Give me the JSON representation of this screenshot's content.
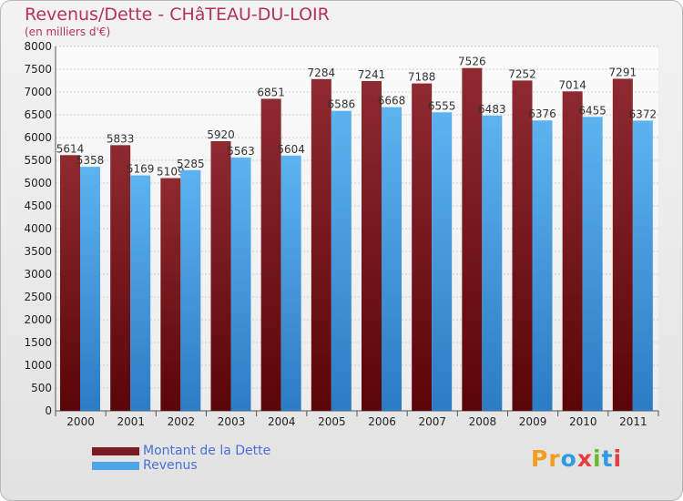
{
  "chart_data": {
    "type": "bar",
    "title": "Revenus/Dette - CHâTEAU-DU-LOIR",
    "subtitle": "(en milliers d'€)",
    "categories": [
      "2000",
      "2001",
      "2002",
      "2003",
      "2004",
      "2005",
      "2006",
      "2007",
      "2008",
      "2009",
      "2010",
      "2011"
    ],
    "series": [
      {
        "name": "Montant de la Dette",
        "color": "#7a1a22",
        "values": [
          5614,
          5833,
          5109,
          5920,
          6851,
          7284,
          7241,
          7188,
          7526,
          7252,
          7014,
          7291
        ]
      },
      {
        "name": "Revenus",
        "color": "#4fa6e6",
        "values": [
          5358,
          5169,
          5285,
          5563,
          5604,
          6586,
          6668,
          6555,
          6483,
          6376,
          6455,
          6372
        ]
      }
    ],
    "ylim": [
      0,
      8000
    ],
    "yticks": [
      0,
      500,
      1000,
      1500,
      2000,
      2500,
      3000,
      3500,
      4000,
      4500,
      5000,
      5500,
      6000,
      6500,
      7000,
      7500,
      8000
    ],
    "grid": true,
    "legend_position": "bottom-left"
  },
  "logo": {
    "letters": [
      "P",
      "r",
      "o",
      "x",
      "i",
      "t",
      "i"
    ],
    "colors": [
      "#f39c1f",
      "#f39c1f",
      "#2f9be0",
      "#e33f3f",
      "#6ab82f",
      "#2f9be0",
      "#e33f3f"
    ]
  }
}
